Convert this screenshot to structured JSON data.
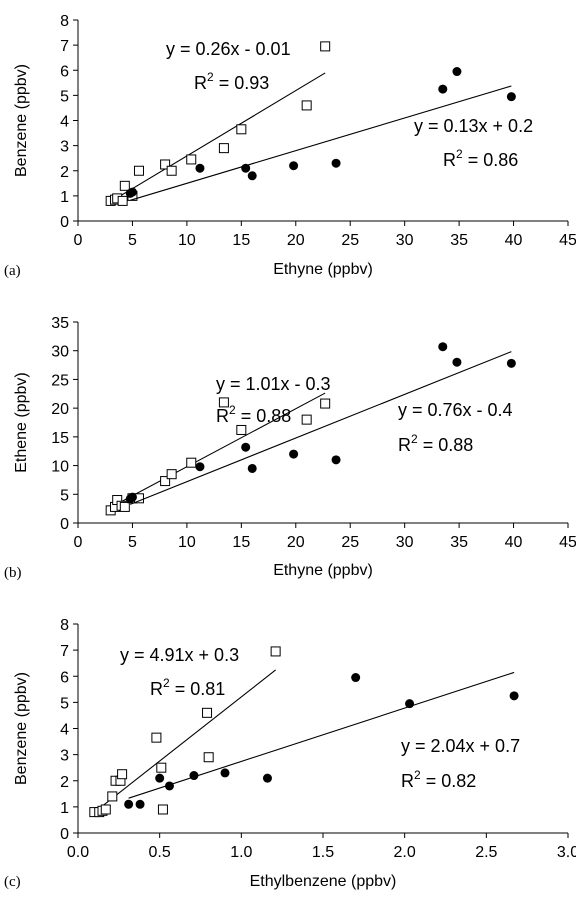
{
  "chart_data": [
    {
      "type": "scatter",
      "panel_label": "(a)",
      "xlabel": "Ethyne (ppbv)",
      "ylabel": "Benzene (ppbv)",
      "xlim": [
        0,
        45
      ],
      "ylim": [
        0,
        8
      ],
      "xticks": [
        "0",
        "5",
        "10",
        "15",
        "20",
        "25",
        "30",
        "35",
        "40",
        "45"
      ],
      "yticks": [
        "0",
        "1",
        "2",
        "3",
        "4",
        "5",
        "6",
        "7",
        "8"
      ],
      "series": [
        {
          "marker": "open-square",
          "points": [
            [
              3.0,
              0.8
            ],
            [
              3.4,
              0.85
            ],
            [
              3.6,
              0.9
            ],
            [
              4.1,
              0.8
            ],
            [
              4.3,
              1.4
            ],
            [
              5.0,
              1.0
            ],
            [
              5.6,
              2.0
            ],
            [
              8.0,
              2.25
            ],
            [
              8.6,
              2.0
            ],
            [
              10.4,
              2.45
            ],
            [
              13.4,
              2.9
            ],
            [
              15.0,
              3.65
            ],
            [
              21.0,
              4.6
            ],
            [
              22.7,
              6.95
            ]
          ],
          "fit": {
            "slope": 0.26,
            "intercept": -0.01,
            "x_range": [
              3.0,
              22.7
            ],
            "equation": "y = 0.26x - 0.01",
            "r2_label": "R",
            "r2_value": " = 0.93"
          }
        },
        {
          "marker": "filled-circle",
          "points": [
            [
              4.8,
              1.1
            ],
            [
              5.0,
              1.15
            ],
            [
              11.2,
              2.1
            ],
            [
              15.4,
              2.1
            ],
            [
              16.0,
              1.8
            ],
            [
              19.8,
              2.2
            ],
            [
              23.7,
              2.3
            ],
            [
              33.5,
              5.25
            ],
            [
              34.8,
              5.95
            ],
            [
              39.8,
              4.95
            ]
          ],
          "fit": {
            "slope": 0.13,
            "intercept": 0.2,
            "x_range": [
              4.8,
              39.8
            ],
            "equation": "y = 0.13x + 0.2",
            "r2_label": "R",
            "r2_value": " = 0.86"
          }
        }
      ]
    },
    {
      "type": "scatter",
      "panel_label": "(b)",
      "xlabel": "Ethyne (ppbv)",
      "ylabel": "Ethene (ppbv)",
      "xlim": [
        0,
        45
      ],
      "ylim": [
        0,
        35
      ],
      "xticks": [
        "0",
        "5",
        "10",
        "15",
        "20",
        "25",
        "30",
        "35",
        "40",
        "45"
      ],
      "yticks": [
        "0",
        "5",
        "10",
        "15",
        "20",
        "25",
        "30",
        "35"
      ],
      "series": [
        {
          "marker": "open-square",
          "points": [
            [
              3.0,
              2.2
            ],
            [
              3.4,
              2.8
            ],
            [
              3.6,
              4.0
            ],
            [
              4.0,
              3.0
            ],
            [
              4.3,
              2.8
            ],
            [
              5.0,
              4.3
            ],
            [
              5.6,
              4.3
            ],
            [
              8.0,
              7.3
            ],
            [
              8.6,
              8.5
            ],
            [
              10.4,
              10.5
            ],
            [
              13.4,
              21.0
            ],
            [
              15.0,
              16.2
            ],
            [
              21.0,
              18.0
            ],
            [
              22.7,
              20.8
            ]
          ],
          "fit": {
            "slope": 1.01,
            "intercept": -0.3,
            "x_range": [
              3.0,
              22.7
            ],
            "equation": "y = 1.01x - 0.3",
            "r2_label": "R",
            "r2_value": " = 0.88"
          }
        },
        {
          "marker": "filled-circle",
          "points": [
            [
              4.8,
              4.2
            ],
            [
              5.0,
              4.5
            ],
            [
              11.2,
              9.8
            ],
            [
              15.4,
              13.2
            ],
            [
              16.0,
              9.5
            ],
            [
              19.8,
              12.0
            ],
            [
              23.7,
              11.0
            ],
            [
              33.5,
              30.7
            ],
            [
              34.8,
              28.0
            ],
            [
              39.8,
              27.8
            ]
          ],
          "fit": {
            "slope": 0.76,
            "intercept": -0.4,
            "x_range": [
              4.8,
              39.8
            ],
            "equation": "y = 0.76x - 0.4",
            "r2_label": "R",
            "r2_value": " = 0.88"
          }
        }
      ]
    },
    {
      "type": "scatter",
      "panel_label": "(c)",
      "xlabel": "Ethylbenzene (ppbv)",
      "ylabel": "Benzene (ppbv)",
      "xlim": [
        0,
        3
      ],
      "ylim": [
        0,
        8
      ],
      "xticks": [
        "0.0",
        "0.5",
        "1.0",
        "1.5",
        "2.0",
        "2.5",
        "3.0"
      ],
      "yticks": [
        "0",
        "1",
        "2",
        "3",
        "4",
        "5",
        "6",
        "7",
        "8"
      ],
      "series": [
        {
          "marker": "open-square",
          "points": [
            [
              0.1,
              0.8
            ],
            [
              0.13,
              0.8
            ],
            [
              0.15,
              0.85
            ],
            [
              0.17,
              0.9
            ],
            [
              0.21,
              1.4
            ],
            [
              0.23,
              2.0
            ],
            [
              0.26,
              2.0
            ],
            [
              0.27,
              2.25
            ],
            [
              0.48,
              3.65
            ],
            [
              0.51,
              2.5
            ],
            [
              0.52,
              0.9
            ],
            [
              0.79,
              4.6
            ],
            [
              0.8,
              2.9
            ],
            [
              1.21,
              6.95
            ]
          ],
          "fit": {
            "slope": 4.91,
            "intercept": 0.3,
            "x_range": [
              0.1,
              1.21
            ],
            "equation": "y = 4.91x + 0.3",
            "r2_label": "R",
            "r2_value": " = 0.81"
          }
        },
        {
          "marker": "filled-circle",
          "points": [
            [
              0.31,
              1.1
            ],
            [
              0.38,
              1.1
            ],
            [
              0.5,
              2.1
            ],
            [
              0.56,
              1.8
            ],
            [
              0.71,
              2.2
            ],
            [
              0.9,
              2.3
            ],
            [
              1.16,
              2.1
            ],
            [
              1.7,
              5.95
            ],
            [
              2.03,
              4.95
            ],
            [
              2.67,
              5.25
            ]
          ],
          "fit": {
            "slope": 2.04,
            "intercept": 0.7,
            "x_range": [
              0.31,
              2.67
            ],
            "equation": "y = 2.04x + 0.7",
            "r2_label": "R",
            "r2_value": " = 0.82"
          }
        }
      ]
    }
  ]
}
